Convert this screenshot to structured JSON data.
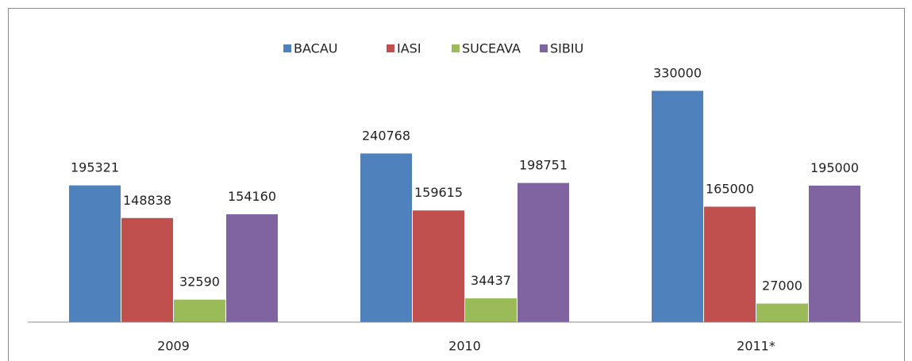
{
  "chart_data": {
    "type": "bar",
    "categories": [
      "2009",
      "2010",
      "2011*"
    ],
    "series": [
      {
        "name": "BACAU",
        "color": "#4f81bd",
        "values": [
          195321,
          240768,
          330000
        ]
      },
      {
        "name": "IASI",
        "color": "#c0504d",
        "values": [
          148838,
          159615,
          165000
        ]
      },
      {
        "name": "SUCEAVA",
        "color": "#9bbb59",
        "values": [
          32590,
          34437,
          27000
        ]
      },
      {
        "name": "SIBIU",
        "color": "#8064a2",
        "values": [
          154160,
          198751,
          195000
        ]
      }
    ],
    "ylim": [
      0,
      400000
    ],
    "legend": "top"
  }
}
